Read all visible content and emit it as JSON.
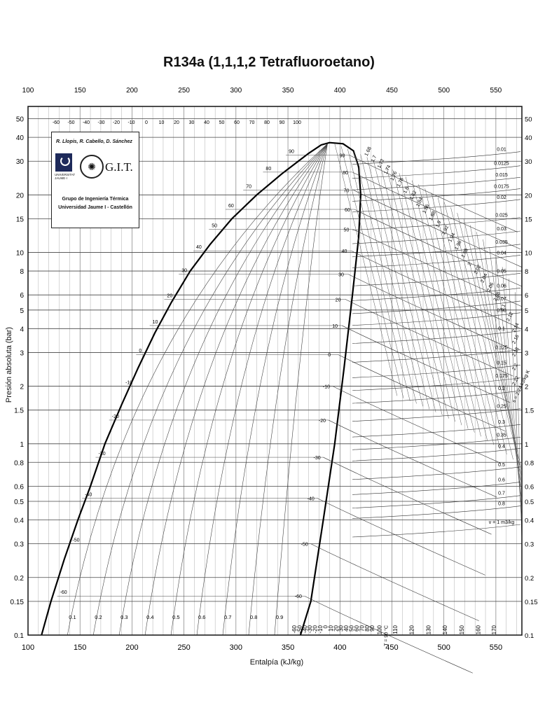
{
  "chart_data": {
    "type": "line",
    "title": "R134a (1,1,1,2 Tetrafluoroetano)",
    "xlabel": "Entalpía (kJ/kg)",
    "ylabel": "Presión absoluta (bar)",
    "xlim": [
      100,
      575
    ],
    "ylim": [
      0.1,
      58
    ],
    "yscale": "log",
    "grid": true,
    "x_ticks": [
      100,
      150,
      200,
      250,
      300,
      350,
      400,
      450,
      500,
      550
    ],
    "y_ticks": [
      0.1,
      0.15,
      0.2,
      0.3,
      0.4,
      0.5,
      0.6,
      0.8,
      1,
      1.5,
      2,
      3,
      4,
      5,
      6,
      8,
      10,
      15,
      20,
      30,
      40,
      50
    ],
    "y_tick_labels": [
      "0.1",
      "0.15",
      "0.2",
      "0.3",
      "0.4",
      "0.5",
      "0.6",
      "0.8",
      "1",
      "1.5",
      "2",
      "3",
      "4",
      "5",
      "6",
      "8",
      "10",
      "15",
      "20",
      "30",
      "40",
      "50"
    ],
    "saturation_liquid": [
      {
        "h": 113,
        "p": 0.1
      },
      {
        "h": 122,
        "p": 0.15
      },
      {
        "h": 135,
        "p": 0.25
      },
      {
        "h": 148,
        "p": 0.4
      },
      {
        "h": 160,
        "p": 0.6
      },
      {
        "h": 174,
        "p": 1.0
      },
      {
        "h": 190,
        "p": 1.6
      },
      {
        "h": 206,
        "p": 2.5
      },
      {
        "h": 222,
        "p": 3.8
      },
      {
        "h": 238,
        "p": 5.5
      },
      {
        "h": 256,
        "p": 8.0
      },
      {
        "h": 275,
        "p": 11.0
      },
      {
        "h": 296,
        "p": 15.0
      },
      {
        "h": 320,
        "p": 20.0
      },
      {
        "h": 345,
        "p": 26.0
      },
      {
        "h": 370,
        "p": 33.0
      },
      {
        "h": 382,
        "p": 36.5
      },
      {
        "h": 390,
        "p": 37.5
      }
    ],
    "saturation_vapor": [
      {
        "h": 390,
        "p": 37.5
      },
      {
        "h": 403,
        "p": 37.0
      },
      {
        "h": 413,
        "p": 34.0
      },
      {
        "h": 418,
        "p": 28.0
      },
      {
        "h": 420,
        "p": 20.0
      },
      {
        "h": 418,
        "p": 12.0
      },
      {
        "h": 412,
        "p": 6.0
      },
      {
        "h": 404,
        "p": 2.5
      },
      {
        "h": 395,
        "p": 1.0
      },
      {
        "h": 384,
        "p": 0.4
      },
      {
        "h": 372,
        "p": 0.15
      },
      {
        "h": 362,
        "p": 0.1
      }
    ],
    "liquid_temperature_labels": [
      "-60",
      "-50",
      "-40",
      "-30",
      "-20",
      "-10",
      "0",
      "10",
      "20",
      "30",
      "40",
      "50",
      "60",
      "70",
      "80",
      "90"
    ],
    "liquid_temperature_points": [
      {
        "h": 128,
        "p": 0.16
      },
      {
        "h": 140,
        "p": 0.3
      },
      {
        "h": 152,
        "p": 0.52
      },
      {
        "h": 165,
        "p": 0.85
      },
      {
        "h": 178,
        "p": 1.33
      },
      {
        "h": 191,
        "p": 2.0
      },
      {
        "h": 204,
        "p": 2.93
      },
      {
        "h": 217,
        "p": 4.15
      },
      {
        "h": 231,
        "p": 5.7
      },
      {
        "h": 245,
        "p": 7.7
      },
      {
        "h": 259,
        "p": 10.2
      },
      {
        "h": 274,
        "p": 13.2
      },
      {
        "h": 290,
        "p": 16.8
      },
      {
        "h": 307,
        "p": 21.2
      },
      {
        "h": 326,
        "p": 26.3
      },
      {
        "h": 348,
        "p": 32.3
      }
    ],
    "vapor_temperature_labels": [
      "90",
      "80",
      "70",
      "60",
      "50",
      "40",
      "30",
      "20",
      "10",
      "0",
      "-10",
      "-20",
      "-30",
      "-40",
      "-50",
      "-60"
    ],
    "vapor_temperature_points": [
      {
        "h": 409,
        "p": 32.3
      },
      {
        "h": 412,
        "p": 26.3
      },
      {
        "h": 413,
        "p": 21.2
      },
      {
        "h": 414,
        "p": 16.8
      },
      {
        "h": 413,
        "p": 13.2
      },
      {
        "h": 411,
        "p": 10.2
      },
      {
        "h": 408,
        "p": 7.7
      },
      {
        "h": 405,
        "p": 5.7
      },
      {
        "h": 402,
        "p": 4.15
      },
      {
        "h": 398,
        "p": 2.93
      },
      {
        "h": 393,
        "p": 2.0
      },
      {
        "h": 389,
        "p": 1.33
      },
      {
        "h": 384,
        "p": 0.85
      },
      {
        "h": 378,
        "p": 0.52
      },
      {
        "h": 372,
        "p": 0.3
      },
      {
        "h": 366,
        "p": 0.16
      }
    ],
    "top_temperature_labels": [
      "-60",
      "-50",
      "-40",
      "-30",
      "-20",
      "-10",
      "0",
      "10",
      "20",
      "30",
      "40",
      "50",
      "60",
      "70",
      "80",
      "90",
      "100"
    ],
    "bottom_temperature_labels": [
      "-60",
      "-50",
      "-40",
      "-30",
      "-20",
      "-10",
      "0",
      "10",
      "20",
      "30",
      "40",
      "50",
      "60",
      "70",
      "80",
      "90",
      "100",
      "110",
      "120",
      "130",
      "140",
      "150",
      "160",
      "170"
    ],
    "bottom_temperature_h": [
      358,
      363,
      368,
      373,
      378,
      383,
      388,
      393,
      398,
      403,
      408,
      413,
      418,
      423,
      428,
      433,
      440,
      455,
      471,
      487,
      503,
      519,
      535,
      550
    ],
    "quality_labels": [
      "0.1",
      "0.2",
      "0.3",
      "0.4",
      "0.5",
      "0.6",
      "0.7",
      "0.8",
      "0.9"
    ],
    "specific_volume_labels": [
      "0.01",
      "0.0125",
      "0.015",
      "0.0175",
      "0.02",
      "0.025",
      "0.03",
      "0.035",
      "0.04",
      "0.05",
      "0.06",
      "0.07",
      "0.08",
      "0.1",
      "0.125",
      "0.15",
      "0.175",
      "0.2",
      "0.25",
      "0.3",
      "0.35",
      "0.4",
      "0.5",
      "0.6",
      "0.7",
      "0.8",
      "v = 1 m3/kg"
    ],
    "specific_volume_p": [
      32,
      27,
      23.5,
      20.5,
      18,
      14.5,
      12.3,
      10.5,
      9.2,
      7.4,
      6.2,
      5.3,
      4.6,
      3.7,
      2.95,
      2.45,
      2.1,
      1.8,
      1.45,
      1.2,
      1.03,
      0.9,
      0.72,
      0.6,
      0.51,
      0.45,
      0.36
    ],
    "entropy_labels": [
      "1.68",
      "1.7",
      "1.72",
      "1.74",
      "1.76",
      "1.78",
      "1.8",
      "1.82",
      "1.84",
      "1.86",
      "1.88",
      "1.9",
      "1.92",
      "1.94",
      "1.96",
      "1.98",
      "2",
      "2.02",
      "2.04",
      "2.06",
      "2.08",
      "2.1",
      "2.12",
      "2.14",
      "2.16",
      "2.18",
      "2.2",
      "2.22",
      "s = 2.24 kJ/kg·K"
    ],
    "right_axis_labels": [
      "50",
      "40",
      "30",
      "20",
      "15",
      "10",
      "8",
      "6",
      "5",
      "4",
      "3",
      "2",
      "1.5",
      "1",
      "0.8",
      "0.6",
      "0.5",
      "0.4",
      "0.3",
      "0.2",
      "0.15",
      "0.1"
    ],
    "t_axis_label": "T = 90 °C"
  },
  "logo": {
    "authors": "R. Llopis, R. Cabello, D. Sánchez",
    "university": "UNIVERSITAT JAUME·I",
    "emblem": "G.I.T.",
    "group": "Grupo de Ingeniería Térmica",
    "institution": "Universidad Jaume I - Castellón"
  },
  "colors": {
    "ink": "#111111",
    "grid": "#555555",
    "background": "#ffffff"
  }
}
